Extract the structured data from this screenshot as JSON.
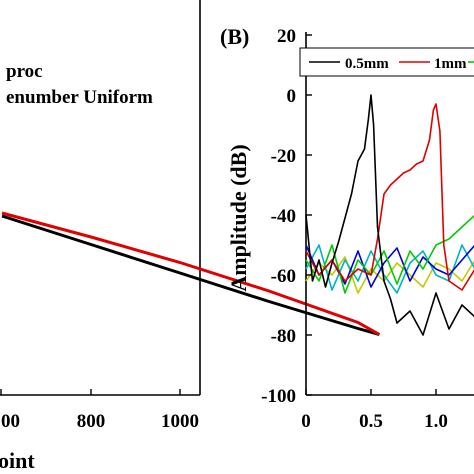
{
  "chart_data": [
    {
      "panel_label": "",
      "type": "line",
      "title": "",
      "xlabel": "oint",
      "ylabel": "",
      "x_ticks": [
        "00",
        "800",
        "1000"
      ],
      "xlim": [
        600,
        1024
      ],
      "legend": [
        "proc",
        "enumber Uniform"
      ],
      "legend_placement": "top-left",
      "grid": false,
      "series": [
        {
          "name": "proc",
          "color": "#000000",
          "x": [
            600,
            700,
            800,
            900,
            1000,
            1024
          ],
          "y": [
            0.28,
            0.185,
            0.09,
            -0.005,
            -0.095,
            -0.115
          ]
        },
        {
          "name": "enumber Uniform",
          "color": "#e00000",
          "x": [
            600,
            700,
            800,
            900,
            1000,
            1024
          ],
          "y": [
            0.29,
            0.21,
            0.125,
            0.03,
            -0.075,
            -0.115
          ]
        }
      ]
    },
    {
      "panel_label": "(B)",
      "type": "line",
      "title": "",
      "xlabel": "",
      "ylabel": "Amplitude (dB)",
      "ylim": [
        -100,
        20
      ],
      "y_ticks": [
        "20",
        "0",
        "-20",
        "-40",
        "-60",
        "-80",
        "-100"
      ],
      "xlim": [
        0,
        1.6
      ],
      "x_ticks": [
        "0",
        "0.5",
        "1.0"
      ],
      "legend": [
        "0.5mm",
        "1mm"
      ],
      "legend_placement": "top",
      "grid": false,
      "series": [
        {
          "name": "0.5mm",
          "color": "#000000",
          "x": [
            0,
            0.05,
            0.1,
            0.15,
            0.2,
            0.25,
            0.3,
            0.35,
            0.4,
            0.45,
            0.48,
            0.5,
            0.52,
            0.55,
            0.6,
            0.65,
            0.7,
            0.8,
            0.9,
            1.0,
            1.1,
            1.2,
            1.3
          ],
          "y": [
            -40,
            -62,
            -55,
            -64,
            -56,
            -49,
            -41,
            -33,
            -22,
            -18,
            -8,
            0,
            -10,
            -44,
            -62,
            -68,
            -76,
            -72,
            -80,
            -66,
            -78,
            -70,
            -74
          ]
        },
        {
          "name": "1mm",
          "color": "#e00000",
          "x": [
            0,
            0.1,
            0.2,
            0.3,
            0.4,
            0.5,
            0.55,
            0.6,
            0.65,
            0.7,
            0.75,
            0.8,
            0.85,
            0.9,
            0.95,
            0.98,
            1.0,
            1.03,
            1.06,
            1.1,
            1.2,
            1.3,
            1.4
          ],
          "y": [
            -52,
            -60,
            -55,
            -62,
            -58,
            -60,
            -48,
            -33,
            -30,
            -28,
            -26,
            -25,
            -23,
            -22,
            -15,
            -5,
            -3,
            -12,
            -50,
            -62,
            -65,
            -58,
            -62
          ]
        },
        {
          "name": "",
          "color": "#00cc00",
          "x": [
            0,
            0.1,
            0.2,
            0.3,
            0.4,
            0.5,
            0.6,
            0.7,
            0.8,
            0.9,
            1.0,
            1.1,
            1.2,
            1.3,
            1.4,
            1.5,
            1.6
          ],
          "y": [
            -55,
            -62,
            -50,
            -66,
            -55,
            -60,
            -52,
            -63,
            -52,
            -58,
            -50,
            -48,
            -44,
            -40,
            -36,
            -32,
            -28
          ]
        },
        {
          "name": "",
          "color": "#0000e0",
          "x": [
            0,
            0.1,
            0.2,
            0.3,
            0.4,
            0.5,
            0.6,
            0.7,
            0.8,
            0.9,
            1.0,
            1.1,
            1.2,
            1.3,
            1.4,
            1.5,
            1.6
          ],
          "y": [
            -50,
            -60,
            -55,
            -63,
            -52,
            -64,
            -56,
            -51,
            -62,
            -54,
            -58,
            -60,
            -55,
            -50,
            -46,
            -42,
            -40
          ]
        },
        {
          "name": "",
          "color": "#00b4c8",
          "x": [
            0,
            0.1,
            0.2,
            0.3,
            0.4,
            0.5,
            0.6,
            0.7,
            0.8,
            0.9,
            1.0,
            1.1,
            1.2,
            1.3,
            1.4,
            1.5,
            1.6
          ],
          "y": [
            -58,
            -50,
            -65,
            -55,
            -62,
            -52,
            -60,
            -66,
            -56,
            -52,
            -60,
            -62,
            -50,
            -58,
            -54,
            -60,
            -56
          ]
        },
        {
          "name": "",
          "color": "#c8c800",
          "x": [
            0,
            0.1,
            0.2,
            0.3,
            0.4,
            0.5,
            0.6,
            0.7,
            0.8,
            0.9,
            1.0,
            1.1,
            1.2,
            1.3,
            1.4,
            1.5,
            1.6
          ],
          "y": [
            -62,
            -56,
            -60,
            -54,
            -66,
            -58,
            -62,
            -56,
            -60,
            -64,
            -56,
            -58,
            -62,
            -55,
            -60,
            -57,
            -62
          ]
        }
      ]
    }
  ]
}
